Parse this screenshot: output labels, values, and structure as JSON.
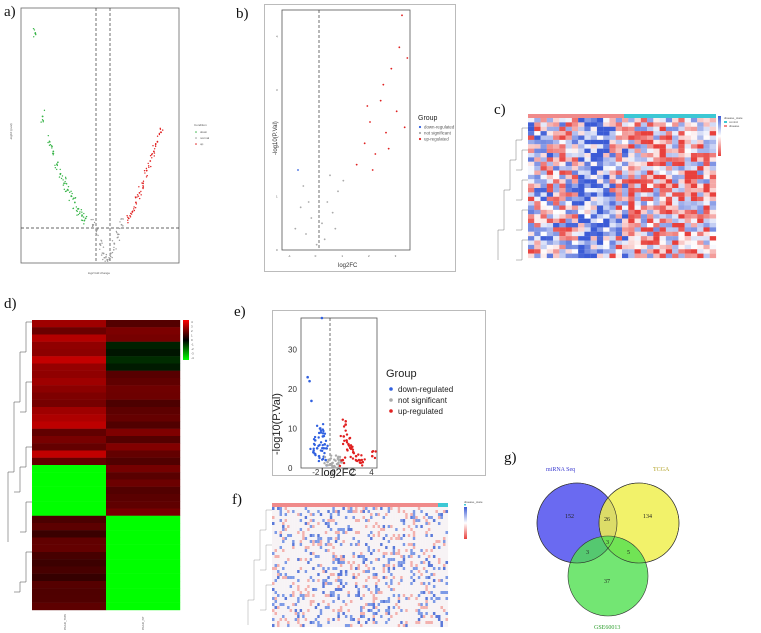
{
  "panel_labels": {
    "a": "a)",
    "b": "b)",
    "c": "c)",
    "d": "d)",
    "e": "e)",
    "f": "f)",
    "g": "g)"
  },
  "colors": {
    "down_green": "#3ab54a",
    "up_red": "#e02020",
    "ns_gray": "#aaaaaa",
    "down_blue": "#3060e0",
    "heat_high": "#e8403c",
    "heat_low": "#3b5bd6",
    "heat_green": "#00ff00",
    "heat_dark": "#300000",
    "venn_mirna": "#5a5af0",
    "venn_tcga": "#f0f050",
    "venn_gse": "#50e050"
  },
  "panel_a": {
    "xlabel": "log2 fold change",
    "ylabel": "-log10 (pval)",
    "legend_title": "Condition",
    "legend": [
      "down",
      "normal",
      "up"
    ]
  },
  "panel_b": {
    "xlabel": "log2FC",
    "ylabel": "-log10(P.Val)",
    "legend_title": "Group",
    "legend": [
      "down-regulated",
      "not significant",
      "up-regulated"
    ],
    "xticks": [
      "-1",
      "0",
      "1",
      "2",
      "3"
    ],
    "yticks": [
      "0",
      "1",
      "2",
      "3",
      "4"
    ]
  },
  "panel_c": {
    "legend_title": "disease_state",
    "legend": [
      "control",
      "disease"
    ]
  },
  "panel_d": {
    "col_labels": [
      "PAAD_TRN",
      "PAAD_NT"
    ],
    "scale": [
      "4",
      "3",
      "2",
      "1",
      "0",
      "-1",
      "-2",
      "-3",
      "-4"
    ]
  },
  "panel_e": {
    "xlabel": "log2FC",
    "ylabel": "-log10(P.Val)",
    "legend_title": "Group",
    "legend": [
      "down-regulated",
      "not significant",
      "up-regulated"
    ],
    "xticks": [
      "-2",
      "0",
      "2",
      "4"
    ],
    "yticks": [
      "0",
      "10",
      "20",
      "30"
    ]
  },
  "panel_f": {
    "legend_title": "disease_state",
    "legend": [
      "control",
      "normal"
    ],
    "scale": [
      "4",
      "2",
      "0",
      "-2"
    ]
  },
  "panel_g": {
    "sets": {
      "mirna": "miRNA Seq",
      "tcga": "TCGA",
      "gse": "GSE60013"
    },
    "counts": {
      "only_mirna": "152",
      "only_tcga": "134",
      "only_gse": "37",
      "mirna_tcga": "26",
      "mirna_gse": "3",
      "tcga_gse": "5",
      "all": "3"
    }
  },
  "chart_data": [
    {
      "type": "scatter",
      "title": "",
      "xlabel": "log2 fold change",
      "ylabel": "-log10 (pval)",
      "series": [
        {
          "name": "down",
          "x": [
            -10,
            -9,
            -8,
            -7.5,
            -7,
            -6.5,
            -6,
            -5.5,
            -5,
            -4.5,
            -4,
            -3.5,
            -3
          ],
          "y": [
            7.2,
            4.6,
            3.8,
            3.5,
            3.1,
            2.8,
            2.5,
            2.3,
            2.1,
            1.9,
            1.7,
            1.5,
            1.4
          ]
        },
        {
          "name": "normal",
          "x": [
            -2,
            -1.5,
            -1,
            -0.5,
            0,
            0.5,
            1,
            1.5,
            2
          ],
          "y": [
            1.2,
            0.9,
            0.6,
            0.3,
            0.1,
            0.3,
            0.6,
            0.9,
            1.2
          ]
        },
        {
          "name": "up",
          "x": [
            3,
            3.5,
            4,
            4.5,
            5,
            5.5,
            6,
            6.5,
            7,
            7.5
          ],
          "y": [
            1.4,
            1.6,
            1.9,
            2.2,
            2.5,
            2.9,
            3.2,
            3.5,
            3.8,
            4.1
          ]
        }
      ]
    },
    {
      "type": "scatter",
      "title": "",
      "xlabel": "log2FC",
      "ylabel": "-log10(P.Val)",
      "xlim": [
        -1.3,
        3.5
      ],
      "ylim": [
        0,
        4.5
      ],
      "series": [
        {
          "name": "down-regulated",
          "x": [
            -0.7
          ],
          "y": [
            1.5
          ]
        },
        {
          "name": "not significant",
          "x": [
            -0.8,
            -0.6,
            -0.4,
            -0.2,
            0,
            0.2,
            0.4,
            0.6,
            0.8,
            1.0,
            -0.5,
            0.3,
            0.7,
            -0.3,
            0.5
          ],
          "y": [
            0.4,
            0.8,
            0.3,
            0.6,
            0.1,
            0.5,
            0.9,
            0.7,
            1.1,
            1.3,
            1.2,
            0.2,
            0.4,
            0.9,
            1.4
          ]
        },
        {
          "name": "up-regulated",
          "x": [
            1.5,
            1.8,
            2.0,
            2.2,
            2.4,
            2.5,
            2.6,
            2.8,
            3.0,
            3.1,
            3.2,
            3.4,
            2.1,
            2.7,
            1.9,
            3.3
          ],
          "y": [
            1.6,
            2.0,
            2.4,
            1.8,
            2.8,
            3.1,
            2.2,
            3.4,
            2.6,
            3.8,
            4.4,
            3.6,
            1.5,
            1.9,
            2.7,
            2.3
          ]
        }
      ]
    },
    {
      "type": "scatter",
      "title": "",
      "xlabel": "log2FC",
      "ylabel": "-log10(P.Val)",
      "xlim": [
        -3.5,
        4.5
      ],
      "ylim": [
        0,
        38
      ],
      "series": [
        {
          "name": "down-regulated",
          "x": [
            -1.3,
            -2.8,
            -2.6,
            -2.4,
            -1.5,
            -1.2,
            -1.0,
            -1.8,
            -2.2,
            -1.6,
            -0.9,
            -1.4,
            -2.0,
            -1.1
          ],
          "y": [
            38,
            23,
            22,
            17,
            10,
            8,
            6,
            5,
            4,
            3,
            2,
            9,
            7,
            5
          ]
        },
        {
          "name": "not significant",
          "x": [
            -0.5,
            -0.3,
            0,
            0.3,
            0.5,
            -0.7,
            0.7
          ],
          "y": [
            2,
            1,
            0.5,
            1,
            2,
            1.5,
            1.5
          ]
        },
        {
          "name": "up-regulated",
          "x": [
            1.0,
            1.2,
            1.5,
            1.8,
            2.0,
            2.3,
            2.6,
            3.0,
            4.0,
            1.3,
            0.9
          ],
          "y": [
            8,
            11,
            6,
            5,
            4,
            3,
            2,
            1.5,
            3,
            7,
            2
          ]
        }
      ]
    }
  ]
}
